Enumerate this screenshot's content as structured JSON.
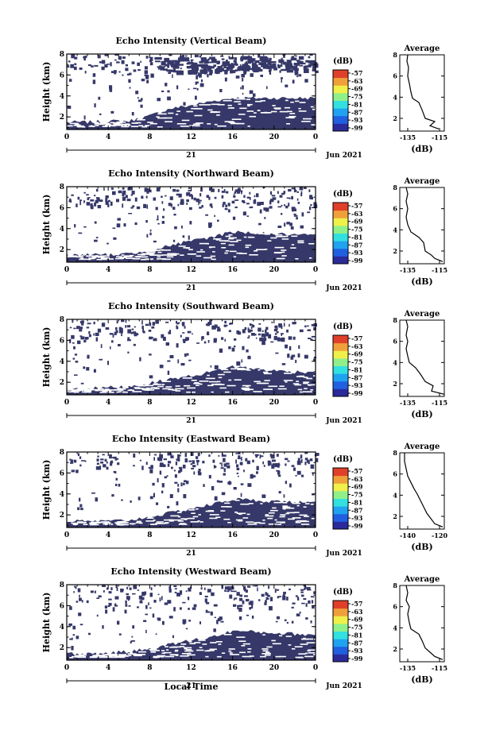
{
  "figure": {
    "date_label": "Jun 2021",
    "day_label": "21",
    "xlabel": "Local Time",
    "ylabel": "Height (km)",
    "colorbar_unit": "(dB)",
    "colorbar_ticks": [
      "-57",
      "-63",
      "-69",
      "-75",
      "-81",
      "-87",
      "-93",
      "-99"
    ],
    "avg_title": "Average",
    "avg_xlabel": "(dB)",
    "colors": {
      "fill": "#363869",
      "colormap": [
        "#2a2a9a",
        "#1f5fe0",
        "#1fa3f0",
        "#33e0e0",
        "#8ff08a",
        "#f0f04a",
        "#f0a03a",
        "#e0402a"
      ]
    }
  },
  "chart_data": [
    {
      "type": "heatmap",
      "title": "Echo Intensity (Vertical Beam)",
      "xlabel": "Local Time",
      "ylabel": "Height (km)",
      "xticks": [
        "0",
        "4",
        "8",
        "12",
        "16",
        "20",
        "0"
      ],
      "yticks": [
        "2",
        "4",
        "6",
        "8"
      ],
      "xlim": [
        0,
        24
      ],
      "ylim": [
        0.8,
        8.0
      ],
      "echo_top_km": [
        [
          0,
          1.5
        ],
        [
          2,
          1.5
        ],
        [
          4,
          1.6
        ],
        [
          6,
          1.6
        ],
        [
          8,
          2.1
        ],
        [
          10,
          2.8
        ],
        [
          12,
          3.1
        ],
        [
          14,
          3.5
        ],
        [
          16,
          3.8
        ],
        [
          18,
          3.8
        ],
        [
          20,
          3.8
        ],
        [
          22,
          3.8
        ],
        [
          24,
          3.8
        ]
      ],
      "average": {
        "title": "Average",
        "xlabel": "(dB)",
        "xticks": [
          "-135",
          "-115"
        ],
        "yticks": [
          "2",
          "4",
          "6",
          "8"
        ],
        "xlim": [
          -140,
          -112
        ],
        "ylim": [
          0.8,
          8.0
        ],
        "profile": [
          [
            -115.5,
            1.0
          ],
          [
            -121,
            1.3
          ],
          [
            -118,
            1.7
          ],
          [
            -124,
            2.0
          ],
          [
            -126,
            2.8
          ],
          [
            -128,
            3.5
          ],
          [
            -132,
            3.9
          ],
          [
            -133,
            4.5
          ],
          [
            -134,
            5.3
          ],
          [
            -135,
            6.0
          ],
          [
            -134.5,
            6.8
          ],
          [
            -135.5,
            7.4
          ],
          [
            -135,
            8.0
          ]
        ]
      }
    },
    {
      "type": "heatmap",
      "title": "Echo Intensity (Northward Beam)",
      "xlabel": "Local Time",
      "ylabel": "Height (km)",
      "xticks": [
        "0",
        "4",
        "8",
        "12",
        "16",
        "20",
        "0"
      ],
      "yticks": [
        "2",
        "4",
        "6",
        "8"
      ],
      "xlim": [
        0,
        24
      ],
      "ylim": [
        0.8,
        8.0
      ],
      "echo_top_km": [
        [
          0,
          1.5
        ],
        [
          2,
          1.5
        ],
        [
          4,
          1.5
        ],
        [
          6,
          1.6
        ],
        [
          8,
          1.9
        ],
        [
          10,
          2.4
        ],
        [
          12,
          2.8
        ],
        [
          14,
          3.2
        ],
        [
          16,
          3.7
        ],
        [
          18,
          3.6
        ],
        [
          20,
          3.5
        ],
        [
          22,
          3.4
        ],
        [
          24,
          3.3
        ]
      ],
      "average": {
        "title": "Average",
        "xlabel": "(dB)",
        "xticks": [
          "-135",
          "-115"
        ],
        "yticks": [
          "2",
          "4",
          "6",
          "8"
        ],
        "xlim": [
          -140,
          -112
        ],
        "ylim": [
          0.8,
          8.0
        ],
        "profile": [
          [
            -113,
            1.0
          ],
          [
            -118,
            1.3
          ],
          [
            -120,
            1.6
          ],
          [
            -124,
            2.0
          ],
          [
            -125,
            2.8
          ],
          [
            -128,
            3.3
          ],
          [
            -133,
            3.8
          ],
          [
            -135,
            4.5
          ],
          [
            -136,
            5.2
          ],
          [
            -135,
            6.0
          ],
          [
            -136,
            6.7
          ],
          [
            -135,
            7.4
          ],
          [
            -136,
            8.0
          ]
        ]
      }
    },
    {
      "type": "heatmap",
      "title": "Echo Intensity (Southward Beam)",
      "xlabel": "Local Time",
      "ylabel": "Height (km)",
      "xticks": [
        "0",
        "4",
        "8",
        "12",
        "16",
        "20",
        "0"
      ],
      "yticks": [
        "2",
        "4",
        "6",
        "8"
      ],
      "xlim": [
        0,
        24
      ],
      "ylim": [
        0.8,
        8.0
      ],
      "echo_top_km": [
        [
          0,
          1.4
        ],
        [
          2,
          1.4
        ],
        [
          4,
          1.5
        ],
        [
          6,
          1.6
        ],
        [
          8,
          1.9
        ],
        [
          10,
          2.3
        ],
        [
          12,
          2.6
        ],
        [
          14,
          3.0
        ],
        [
          16,
          3.5
        ],
        [
          18,
          3.3
        ],
        [
          20,
          3.1
        ],
        [
          22,
          3.0
        ],
        [
          24,
          3.0
        ]
      ],
      "average": {
        "title": "Average",
        "xlabel": "(dB)",
        "xticks": [
          "-135",
          "-115"
        ],
        "yticks": [
          "2",
          "4",
          "6",
          "8"
        ],
        "xlim": [
          -140,
          -112
        ],
        "ylim": [
          0.8,
          8.0
        ],
        "profile": [
          [
            -112,
            1.0
          ],
          [
            -120,
            1.3
          ],
          [
            -119,
            1.8
          ],
          [
            -124,
            2.2
          ],
          [
            -127,
            2.9
          ],
          [
            -130,
            3.5
          ],
          [
            -134,
            4.0
          ],
          [
            -135,
            4.6
          ],
          [
            -136,
            5.3
          ],
          [
            -135,
            6.0
          ],
          [
            -136,
            6.6
          ],
          [
            -135,
            7.4
          ],
          [
            -136,
            8.0
          ]
        ]
      }
    },
    {
      "type": "heatmap",
      "title": "Echo Intensity (Eastward Beam)",
      "xlabel": "Local Time",
      "ylabel": "Height (km)",
      "xticks": [
        "0",
        "4",
        "8",
        "12",
        "16",
        "20",
        "0"
      ],
      "yticks": [
        "2",
        "4",
        "6",
        "8"
      ],
      "xlim": [
        0,
        24
      ],
      "ylim": [
        0.8,
        8.0
      ],
      "echo_top_km": [
        [
          0,
          1.4
        ],
        [
          2,
          1.4
        ],
        [
          4,
          1.4
        ],
        [
          6,
          1.5
        ],
        [
          8,
          1.8
        ],
        [
          10,
          2.2
        ],
        [
          12,
          2.6
        ],
        [
          14,
          3.0
        ],
        [
          16,
          3.5
        ],
        [
          18,
          3.4
        ],
        [
          20,
          3.3
        ],
        [
          22,
          3.2
        ],
        [
          24,
          3.1
        ]
      ],
      "average": {
        "title": "Average",
        "xlabel": "(dB)",
        "xticks": [
          "-140",
          "-120"
        ],
        "yticks": [
          "2",
          "4",
          "6",
          "8"
        ],
        "xlim": [
          -145,
          -117
        ],
        "ylim": [
          0.8,
          8.0
        ],
        "profile": [
          [
            -118,
            1.0
          ],
          [
            -123,
            1.3
          ],
          [
            -125,
            1.7
          ],
          [
            -128,
            2.3
          ],
          [
            -130,
            2.9
          ],
          [
            -132,
            3.5
          ],
          [
            -134,
            4.1
          ],
          [
            -136,
            4.6
          ],
          [
            -138,
            5.2
          ],
          [
            -140,
            5.8
          ],
          [
            -141,
            6.5
          ],
          [
            -142,
            7.2
          ],
          [
            -142,
            8.0
          ]
        ]
      }
    },
    {
      "type": "heatmap",
      "title": "Echo Intensity (Westward Beam)",
      "xlabel": "Local Time",
      "ylabel": "Height (km)",
      "xticks": [
        "0",
        "4",
        "8",
        "12",
        "16",
        "20",
        "0"
      ],
      "yticks": [
        "2",
        "4",
        "6",
        "8"
      ],
      "xlim": [
        0,
        24
      ],
      "ylim": [
        0.8,
        8.0
      ],
      "echo_top_km": [
        [
          0,
          1.4
        ],
        [
          2,
          1.4
        ],
        [
          4,
          1.5
        ],
        [
          6,
          1.6
        ],
        [
          8,
          1.9
        ],
        [
          10,
          2.3
        ],
        [
          12,
          2.7
        ],
        [
          14,
          3.0
        ],
        [
          16,
          3.6
        ],
        [
          18,
          3.5
        ],
        [
          20,
          3.4
        ],
        [
          22,
          3.3
        ],
        [
          24,
          3.2
        ]
      ],
      "average": {
        "title": "Average",
        "xlabel": "(dB)",
        "xticks": [
          "-135",
          "-115"
        ],
        "yticks": [
          "2",
          "4",
          "6",
          "8"
        ],
        "xlim": [
          -140,
          -112
        ],
        "ylim": [
          0.8,
          8.0
        ],
        "profile": [
          [
            -113,
            1.0
          ],
          [
            -118,
            1.3
          ],
          [
            -121,
            1.7
          ],
          [
            -124,
            2.1
          ],
          [
            -126,
            2.8
          ],
          [
            -128,
            3.4
          ],
          [
            -133,
            3.9
          ],
          [
            -134,
            4.5
          ],
          [
            -135,
            5.3
          ],
          [
            -134,
            6.0
          ],
          [
            -136,
            6.6
          ],
          [
            -135,
            7.3
          ],
          [
            -136,
            8.0
          ]
        ]
      }
    }
  ]
}
